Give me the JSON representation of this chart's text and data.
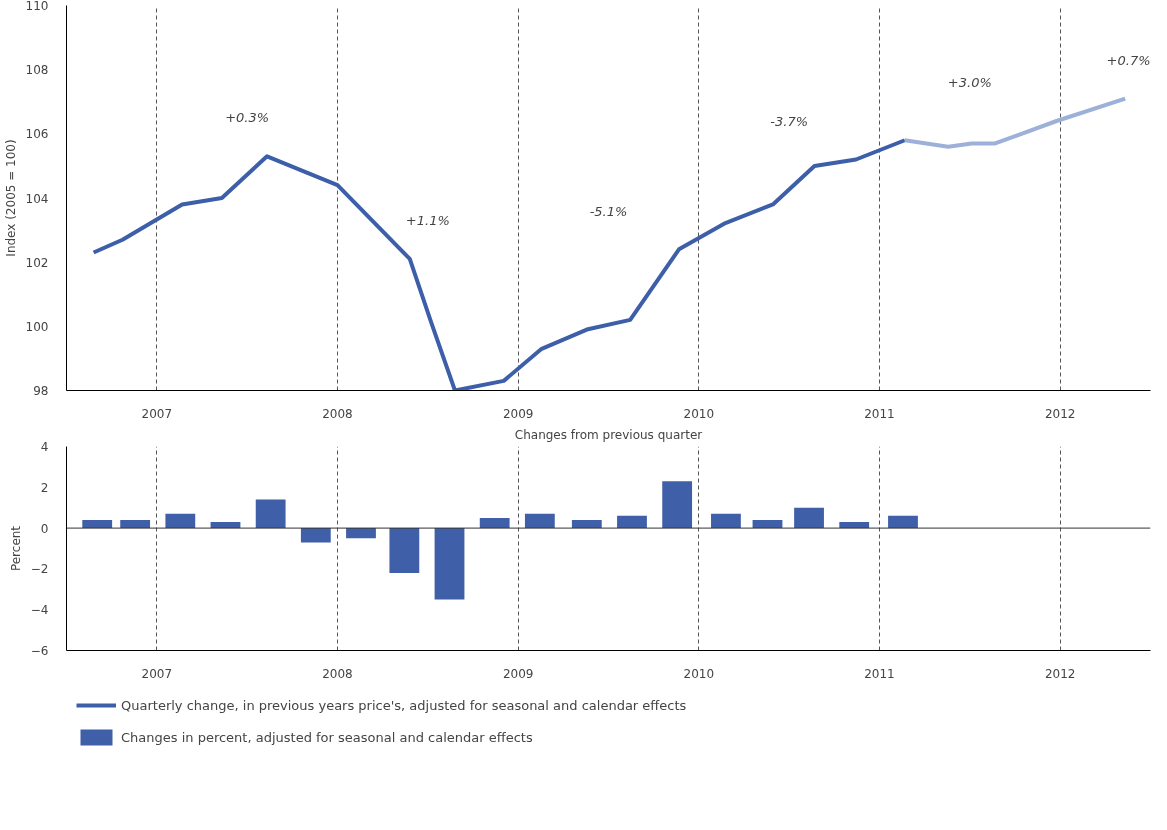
{
  "chart_data": [
    {
      "type": "line",
      "ylabel": "Index (2005 = 100)",
      "xlim": [
        2006.5,
        2012.5
      ],
      "ylim": [
        98,
        110
      ],
      "xticks": [
        2007,
        2008,
        2009,
        2010,
        2011,
        2012
      ],
      "yticks": [
        98,
        100,
        102,
        104,
        106,
        108,
        110
      ],
      "grid": "x",
      "legend": "bottom",
      "line_style": "solid",
      "marker": "none",
      "series": [
        {
          "name": "Quarterly change, in previous years price's, adjusted for seasonal and calendar effects",
          "color": "#3d5ea8",
          "x": [
            2006.65,
            2006.81,
            2007.14,
            2007.36,
            2007.61,
            2008.0,
            2008.4,
            2008.52,
            2008.65,
            2008.92,
            2009.13,
            2009.38,
            2009.62,
            2009.89,
            2010.14,
            2010.41,
            2010.64,
            2010.87,
            2011.14
          ],
          "values": [
            102.3,
            102.7,
            103.8,
            104.0,
            105.3,
            104.4,
            102.1,
            100.1,
            98.0,
            98.3,
            99.3,
            99.9,
            100.2,
            102.4,
            103.2,
            103.8,
            105.0,
            105.2,
            105.8
          ]
        },
        {
          "color": "#9db0d9",
          "x": [
            2011.14,
            2011.38,
            2011.51,
            2011.64,
            2011.98,
            2012.36
          ],
          "values": [
            105.8,
            105.6,
            105.7,
            105.7,
            106.4,
            107.1
          ]
        }
      ],
      "annotations": [
        "+0.3%",
        "+1.1%",
        "-5.1%",
        "-3.7%",
        "+3.0%",
        "+0.7%"
      ]
    },
    {
      "type": "bar",
      "title": "Changes from previous quarter",
      "ylabel": "Percent",
      "xlim": [
        2006.5,
        2012.5
      ],
      "ylim": [
        -6,
        4
      ],
      "xticks": [
        2007,
        2008,
        2009,
        2010,
        2011,
        2012
      ],
      "yticks": [
        -6,
        -4,
        -2,
        0,
        2,
        4
      ],
      "grid": "x",
      "legend": "bottom",
      "ref_lines": [
        {
          "axis": "y",
          "value": 0,
          "color": "#333333"
        }
      ],
      "x": [
        2006.67,
        2006.88,
        2007.13,
        2007.38,
        2007.63,
        2007.88,
        2008.13,
        2008.37,
        2008.62,
        2008.87,
        2009.12,
        2009.38,
        2009.63,
        2009.88,
        2010.15,
        2010.38,
        2010.61,
        2010.86,
        2011.13
      ],
      "series": [
        {
          "name": "Changes in percent, adjusted for seasonal and calendar effects",
          "color": "#3f5fa8",
          "values": [
            0.4,
            0.4,
            0.7,
            0.3,
            1.4,
            -0.7,
            -0.5,
            -2.2,
            -3.5,
            0.5,
            0.7,
            0.4,
            0.6,
            2.3,
            0.7,
            0.4,
            1.0,
            0.3,
            0.6
          ]
        }
      ]
    }
  ]
}
